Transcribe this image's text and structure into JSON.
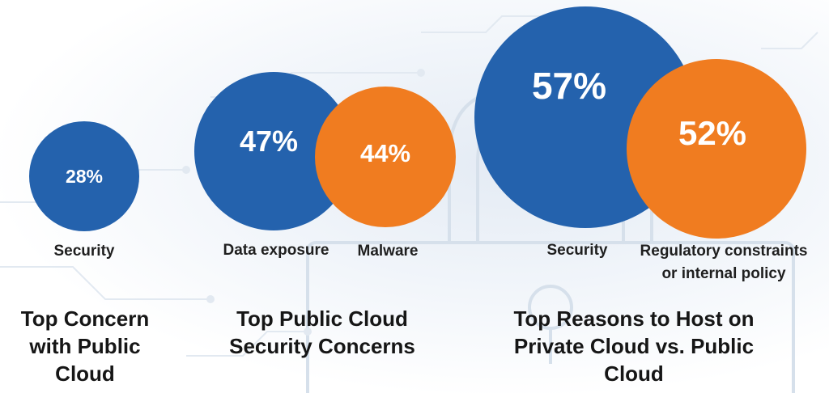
{
  "colors": {
    "blue": "#2462ad",
    "orange": "#f07c20",
    "text": "#161616"
  },
  "chart_data": [
    {
      "type": "bubble",
      "title": "Top Concern with Public Cloud",
      "unit": "%",
      "categories": [
        "Security"
      ],
      "values": [
        28
      ],
      "series": [
        {
          "name": "Security",
          "value": 28,
          "label": "28%",
          "color": "blue"
        }
      ]
    },
    {
      "type": "bubble",
      "title": "Top Public Cloud Security Concerns",
      "unit": "%",
      "categories": [
        "Data exposure",
        "Malware"
      ],
      "values": [
        47,
        44
      ],
      "series": [
        {
          "name": "Data exposure",
          "value": 47,
          "label": "47%",
          "color": "blue"
        },
        {
          "name": "Malware",
          "value": 44,
          "label": "44%",
          "color": "orange"
        }
      ]
    },
    {
      "type": "bubble",
      "title": "Top Reasons to Host on Private Cloud vs. Public Cloud",
      "unit": "%",
      "categories": [
        "Security",
        "Regulatory constraints or internal policy"
      ],
      "values": [
        57,
        52
      ],
      "series": [
        {
          "name": "Security",
          "value": 57,
          "label": "57%",
          "color": "blue"
        },
        {
          "name": "Regulatory constraints or internal policy",
          "value": 52,
          "label": "52%",
          "color": "orange"
        }
      ]
    }
  ],
  "titles": {
    "group1": "Top Concern with Public Cloud",
    "group2": "Top Public Cloud Security Concerns",
    "group3": "Top Reasons to Host on Private Cloud vs. Public Cloud"
  },
  "labels": {
    "g1_security": "Security",
    "g2_data_exposure": "Data exposure",
    "g2_malware": "Malware",
    "g3_security": "Security",
    "g3_regulatory_line1": "Regulatory constraints",
    "g3_regulatory_line2": "or internal policy"
  },
  "values": {
    "g1_security": "28%",
    "g2_data_exposure": "47%",
    "g2_malware": "44%",
    "g3_security": "57%",
    "g3_regulatory": "52%"
  },
  "background_icon": "padlock-circuit-icon"
}
